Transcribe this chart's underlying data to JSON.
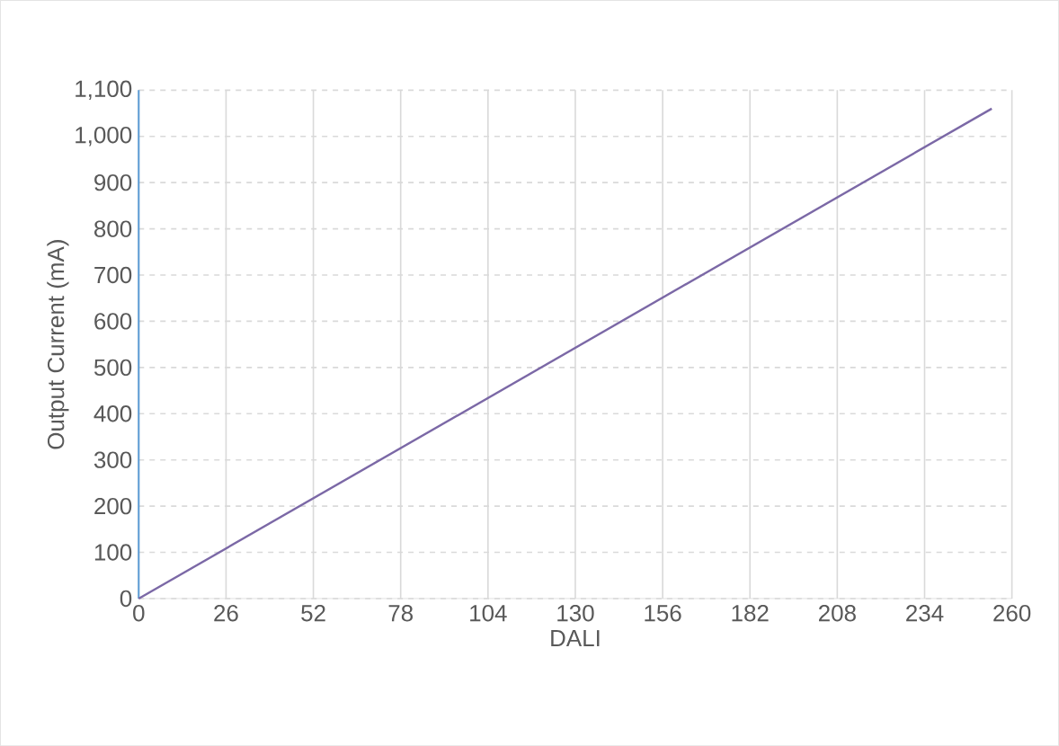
{
  "chart_data": {
    "type": "line",
    "xlabel": "DALI",
    "ylabel": "Output Current (mA)",
    "x": [
      0,
      254
    ],
    "series": [
      {
        "color": "#7b68a6",
        "values": [
          0,
          1060
        ]
      }
    ],
    "xlim": [
      0,
      260
    ],
    "xticks": [
      0,
      26,
      52,
      78,
      104,
      130,
      156,
      182,
      208,
      234,
      260
    ],
    "ylim": [
      0,
      1100
    ],
    "yticks": [
      0,
      100,
      200,
      300,
      400,
      500,
      600,
      700,
      800,
      900,
      {
        "value": 1000,
        "label": "1,000"
      },
      {
        "value": 1100,
        "label": "1,100"
      }
    ],
    "grid": true,
    "marker": "none",
    "line_style": "solid"
  }
}
